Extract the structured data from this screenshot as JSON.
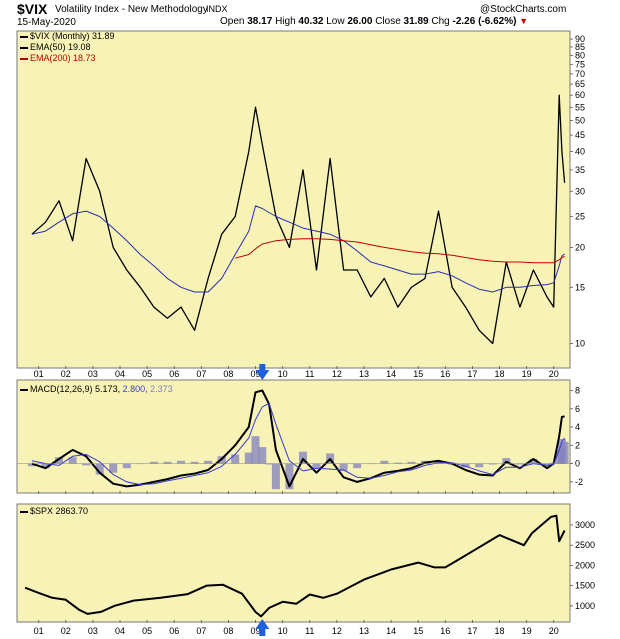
{
  "header": {
    "symbol": "$VIX",
    "name": "Volatility Index - New Methodology",
    "exchange": "INDX",
    "copyright": "@StockCharts.com",
    "date": "15-May-2020",
    "ohlc": {
      "open_label": "Open",
      "open": "38.17",
      "high_label": "High",
      "high": "40.32",
      "low_label": "Low",
      "low": "26.00",
      "close_label": "Close",
      "close": "31.89",
      "chg_label": "Chg",
      "chg": "-2.26 (-6.62%)"
    }
  },
  "legends": {
    "vix": "$VIX (Monthly) 31.89",
    "ema50": "EMA(50) 19.08",
    "ema200": "EMA(200) 18.73",
    "macd_prefix": "MACD(12,26,9)",
    "macd_value": "5.173,",
    "macd_signal": "2.800,",
    "macd_hist": "2.373",
    "spx": "$SPX 2863.70"
  },
  "colors": {
    "panel_bg": "#f7f3b7",
    "vix": "#000000",
    "ema50": "#2b2bb0",
    "ema200": "#c00000",
    "macd": "#000000",
    "signal": "#3a3ad0",
    "histogram": "#8080c0",
    "spx": "#000000",
    "marker": "#1f5fe0"
  },
  "markers": {
    "arrow_year": "09",
    "icon": "arrow-icon"
  },
  "chart_data": [
    {
      "type": "line",
      "title": "$VIX (Monthly) 31.89",
      "log_scale": true,
      "ylim": [
        8.5,
        92
      ],
      "y_ticks": [
        10,
        15,
        20,
        25,
        30,
        35,
        40,
        45,
        50,
        55,
        60,
        65,
        70,
        75,
        80,
        85,
        90
      ],
      "x_labels": [
        "01",
        "02",
        "03",
        "04",
        "05",
        "06",
        "07",
        "08",
        "09",
        "10",
        "11",
        "12",
        "13",
        "14",
        "15",
        "16",
        "17",
        "18",
        "19",
        "20"
      ],
      "grid": false,
      "x": [
        2000.75,
        2001.25,
        2001.75,
        2002.25,
        2002.75,
        2003.25,
        2003.75,
        2004.25,
        2004.75,
        2005.25,
        2005.75,
        2006.25,
        2006.75,
        2007.25,
        2007.75,
        2008.25,
        2008.75,
        2009.0,
        2009.25,
        2009.75,
        2010.25,
        2010.75,
        2011.25,
        2011.75,
        2012.25,
        2012.75,
        2013.25,
        2013.75,
        2014.25,
        2014.75,
        2015.25,
        2015.75,
        2016.25,
        2016.75,
        2017.25,
        2017.75,
        2018.25,
        2018.75,
        2019.25,
        2019.75,
        2020.0,
        2020.2,
        2020.3,
        2020.4
      ],
      "series": [
        {
          "name": "$VIX (Monthly) 31.89",
          "values": [
            22,
            24,
            28,
            21,
            38,
            30,
            20,
            17,
            15,
            13,
            12,
            13,
            11,
            16,
            22,
            25,
            40,
            55,
            42,
            25,
            20,
            35,
            17,
            38,
            17,
            17,
            14,
            16,
            13,
            15,
            16,
            26,
            15,
            13,
            11,
            10,
            18,
            13,
            17,
            14,
            13,
            60,
            40,
            31.89
          ]
        },
        {
          "name": "EMA(50) 19.08",
          "values": [
            22,
            22.5,
            24,
            25.5,
            26,
            25,
            23,
            21,
            19,
            17.5,
            16,
            15,
            14.5,
            14.5,
            16,
            19,
            22.5,
            27,
            26.5,
            25,
            24,
            23,
            22.5,
            22,
            21,
            19.5,
            18,
            17.5,
            17,
            16.5,
            16.5,
            16.8,
            16.3,
            15.5,
            14.8,
            14.5,
            15,
            15,
            15.2,
            15.3,
            15.5,
            17.5,
            18.8,
            19.08
          ]
        },
        {
          "name": "EMA(200) 18.73",
          "values": [
            null,
            null,
            null,
            null,
            null,
            null,
            null,
            null,
            null,
            null,
            null,
            null,
            null,
            null,
            null,
            18.5,
            19,
            19.8,
            20.5,
            21,
            21.2,
            21.3,
            21.3,
            21.2,
            21,
            20.8,
            20.4,
            20,
            19.7,
            19.4,
            19.2,
            19.1,
            18.9,
            18.6,
            18.3,
            18.1,
            18,
            18,
            17.9,
            17.9,
            17.9,
            18.3,
            18.6,
            18.73
          ]
        }
      ]
    },
    {
      "type": "line",
      "title": "MACD(12,26,9) 5.173, 2.800, 2.373",
      "ylim": [
        -3,
        8.6
      ],
      "y_ticks": [
        -2,
        0,
        2,
        4,
        6,
        8
      ],
      "x_labels": [
        "01",
        "02",
        "03",
        "04",
        "05",
        "06",
        "07",
        "08",
        "09",
        "10",
        "11",
        "12",
        "13",
        "14",
        "15",
        "16",
        "17",
        "18",
        "19",
        "20"
      ],
      "x": [
        2000.75,
        2001.25,
        2001.75,
        2002.25,
        2002.75,
        2003.25,
        2003.75,
        2004.25,
        2004.75,
        2005.25,
        2005.75,
        2006.25,
        2006.75,
        2007.25,
        2007.75,
        2008.25,
        2008.75,
        2009.0,
        2009.25,
        2009.5,
        2009.75,
        2010.25,
        2010.75,
        2011.25,
        2011.75,
        2012.25,
        2012.75,
        2013.25,
        2013.75,
        2014.25,
        2014.75,
        2015.25,
        2015.75,
        2016.25,
        2016.75,
        2017.25,
        2017.75,
        2018.25,
        2018.75,
        2019.25,
        2019.75,
        2020.0,
        2020.2,
        2020.3,
        2020.4
      ],
      "series": [
        {
          "name": "MACD",
          "values": [
            0,
            -0.5,
            0.5,
            1.5,
            0.8,
            -1,
            -2.2,
            -2.5,
            -2.3,
            -2,
            -1.7,
            -1.3,
            -1.1,
            -0.7,
            0.5,
            2,
            4,
            7.8,
            8,
            6.5,
            1.5,
            -2.5,
            0.5,
            -1,
            0.5,
            -1.5,
            -2,
            -1.6,
            -1,
            -0.8,
            -0.5,
            0.1,
            0.3,
            0,
            -0.7,
            -1.2,
            -1.3,
            0.2,
            -0.5,
            0.5,
            -0.5,
            0,
            3,
            5.1,
            5.173
          ]
        },
        {
          "name": "Signal",
          "values": [
            0.3,
            0,
            -0.2,
            0.8,
            1,
            0.2,
            -1.2,
            -2,
            -2.3,
            -2.2,
            -1.9,
            -1.6,
            -1.3,
            -1,
            -0.3,
            1,
            2.8,
            4.8,
            6.2,
            6.6,
            4.3,
            0.3,
            -0.8,
            -0.5,
            -0.6,
            -0.7,
            -1.5,
            -1.6,
            -1.3,
            -0.9,
            -0.7,
            -0.2,
            0.1,
            0.1,
            -0.3,
            -0.8,
            -1.2,
            -0.4,
            -0.4,
            0,
            -0.2,
            -0.1,
            1.5,
            2.4,
            2.8
          ]
        },
        {
          "name": "Histogram",
          "values": [
            -0.3,
            -0.5,
            0.7,
            0.7,
            -0.2,
            -1.2,
            -1,
            -0.5,
            0,
            0.2,
            0.2,
            0.3,
            0.2,
            0.3,
            0.8,
            1,
            1.2,
            3,
            1.8,
            -0.1,
            -2.8,
            -2.8,
            1.3,
            -0.5,
            1.1,
            -0.8,
            -0.5,
            0,
            0.3,
            0.1,
            0.2,
            0.3,
            0.2,
            -0.1,
            -0.4,
            -0.4,
            -0.1,
            0.6,
            -0.1,
            0.5,
            -0.3,
            0.1,
            1.5,
            2.7,
            2.373
          ]
        }
      ]
    },
    {
      "type": "line",
      "title": "$SPX 2863.70",
      "ylim": [
        650,
        3420
      ],
      "y_ticks": [
        1000,
        1500,
        2000,
        2500,
        3000
      ],
      "x_labels": [
        "01",
        "02",
        "03",
        "04",
        "05",
        "06",
        "07",
        "08",
        "09",
        "10",
        "11",
        "12",
        "13",
        "14",
        "15",
        "16",
        "17",
        "18",
        "19",
        "20"
      ],
      "x": [
        2000.5,
        2001.0,
        2001.5,
        2002.0,
        2002.5,
        2002.8,
        2003.3,
        2003.8,
        2004.5,
        2005.5,
        2006.5,
        2007.2,
        2007.8,
        2008.5,
        2009.0,
        2009.2,
        2009.5,
        2010.0,
        2010.5,
        2011.0,
        2011.5,
        2012.0,
        2013.0,
        2014.0,
        2015.0,
        2015.6,
        2016.0,
        2016.5,
        2017.0,
        2018.0,
        2018.9,
        2019.2,
        2019.9,
        2020.1,
        2020.2,
        2020.4
      ],
      "series": [
        {
          "name": "$SPX 2863.70",
          "values": [
            1450,
            1320,
            1200,
            1150,
            900,
            800,
            850,
            1000,
            1130,
            1200,
            1290,
            1500,
            1520,
            1300,
            850,
            740,
            950,
            1100,
            1050,
            1280,
            1200,
            1300,
            1650,
            1900,
            2070,
            1950,
            1950,
            2150,
            2350,
            2750,
            2500,
            2800,
            3200,
            3230,
            2600,
            2863.7
          ]
        }
      ]
    }
  ]
}
